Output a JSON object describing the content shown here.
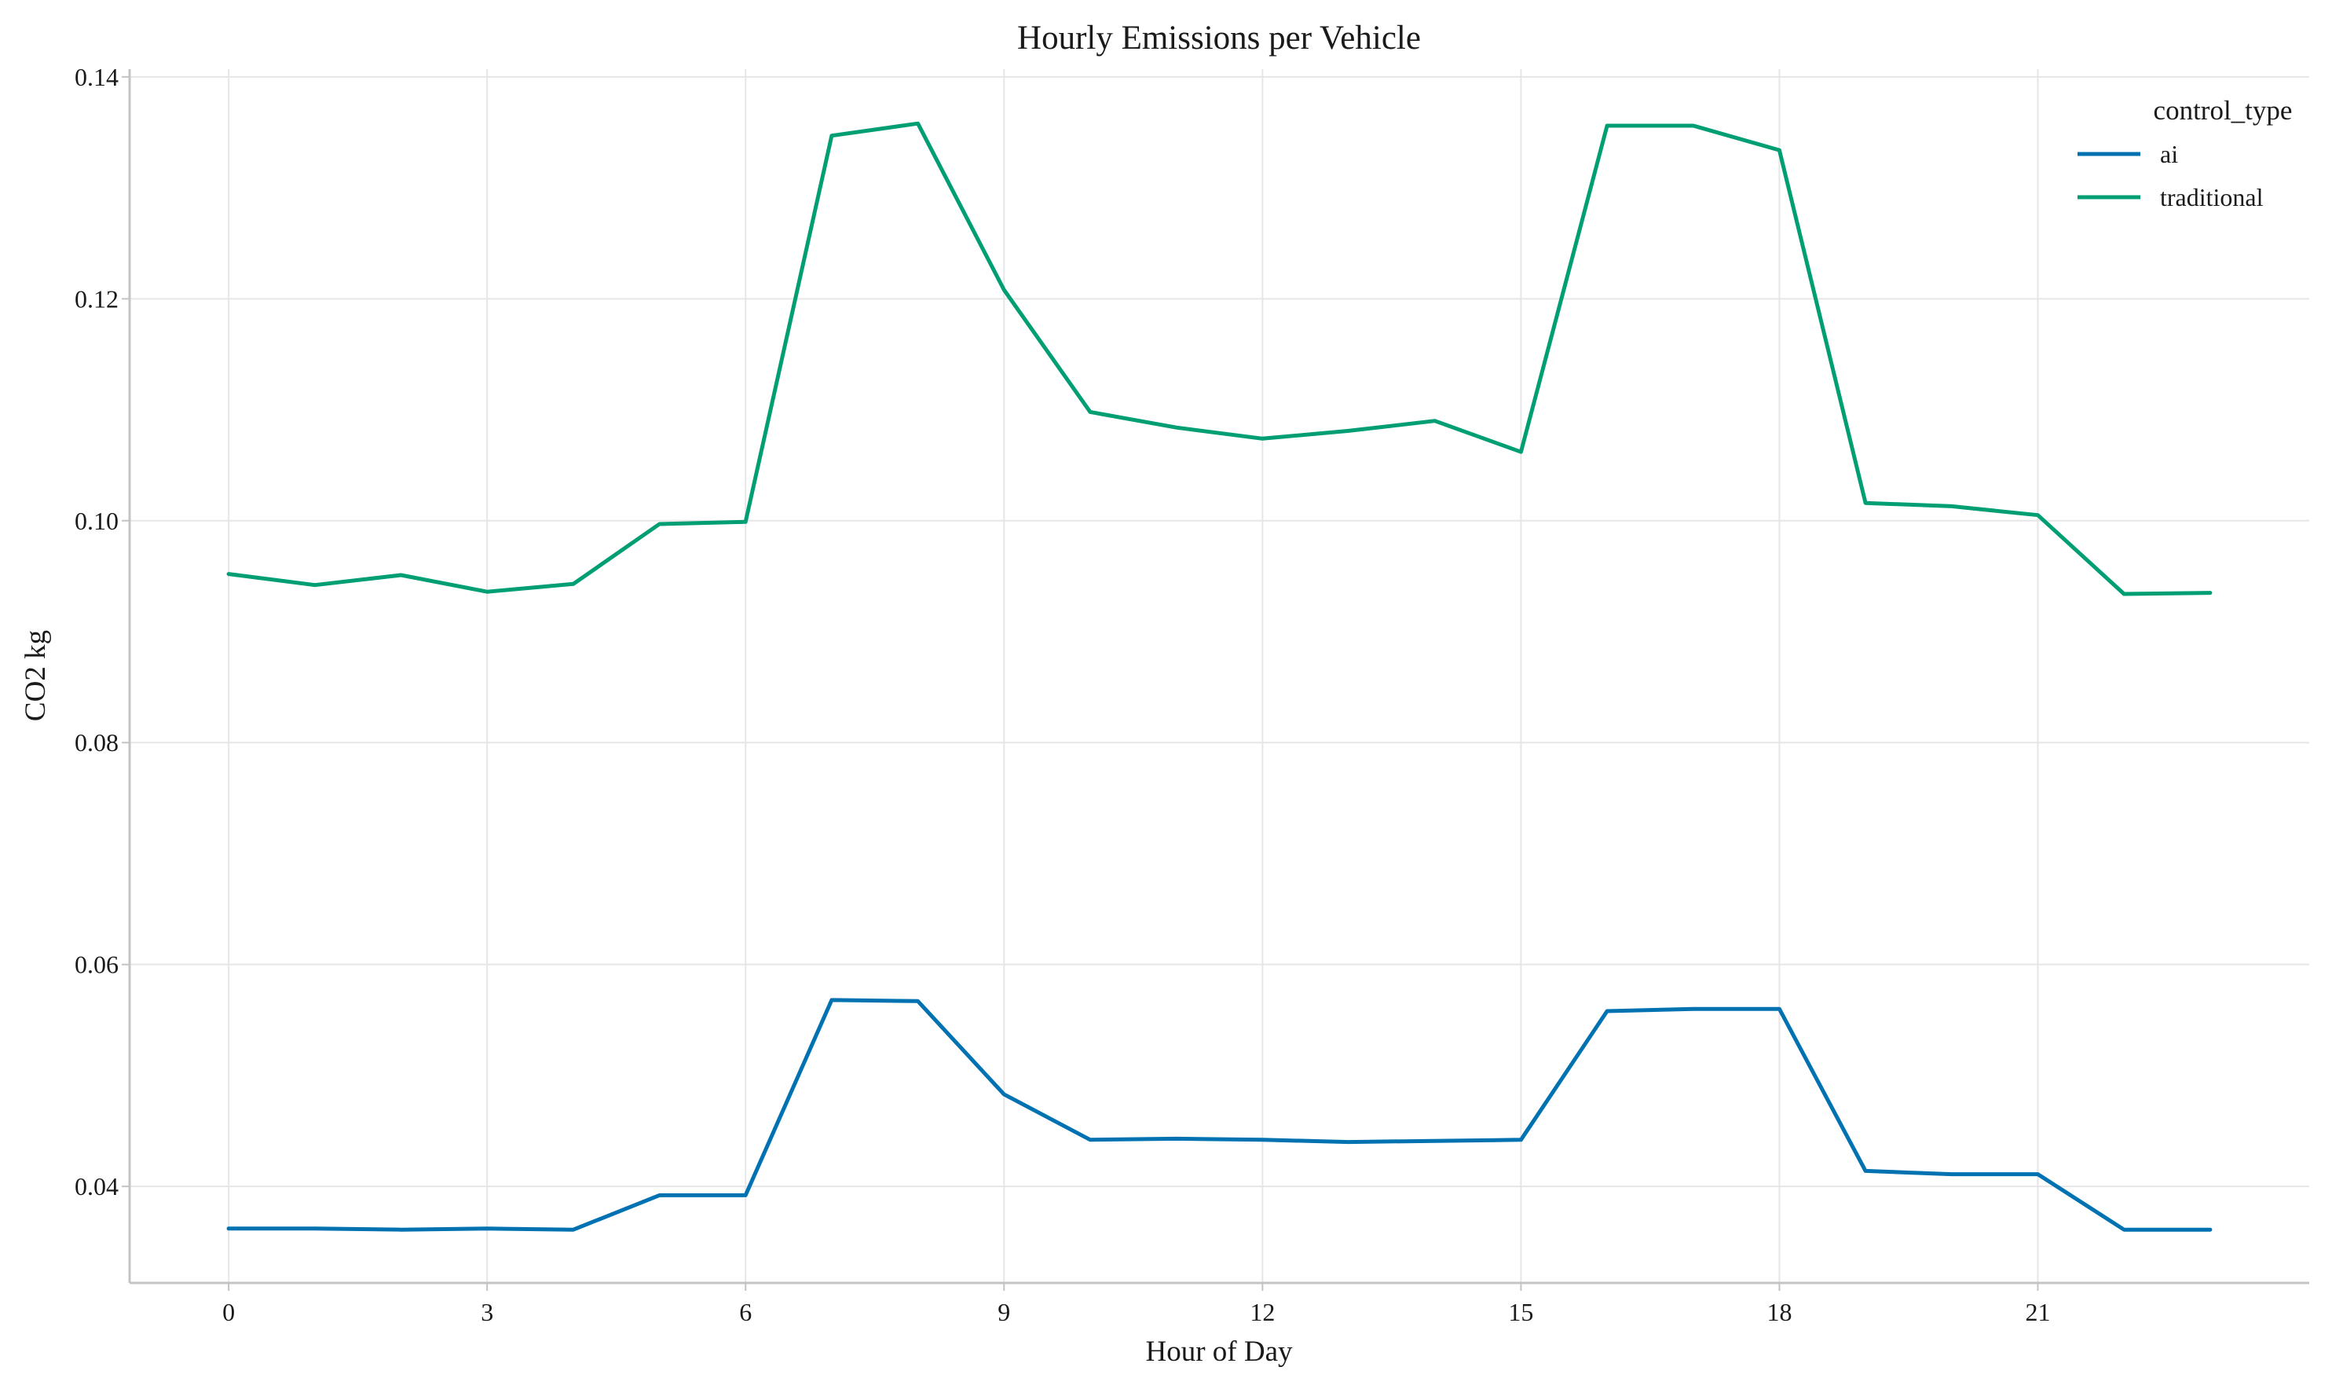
{
  "chart_data": {
    "type": "line",
    "title": "Hourly Emissions per Vehicle",
    "xlabel": "Hour of Day",
    "ylabel": "CO2 kg",
    "x": [
      0,
      1,
      2,
      3,
      4,
      5,
      6,
      7,
      8,
      9,
      10,
      11,
      12,
      13,
      14,
      15,
      16,
      17,
      18,
      19,
      20,
      21,
      22,
      23
    ],
    "xticks": [
      0,
      3,
      6,
      9,
      12,
      15,
      18,
      21
    ],
    "xtick_labels": [
      "0",
      "3",
      "6",
      "9",
      "12",
      "15",
      "18",
      "21"
    ],
    "xlim": [
      -1.15,
      24.15
    ],
    "yticks": [
      0.04,
      0.06,
      0.08,
      0.1,
      0.12,
      0.14
    ],
    "ytick_labels": [
      "0.04",
      "0.06",
      "0.08",
      "0.10",
      "0.12",
      "0.14"
    ],
    "ylim": [
      0.0313,
      0.1407
    ],
    "grid": true,
    "legend": {
      "title": "control_type",
      "position": "top-right"
    },
    "series": [
      {
        "name": "ai",
        "color": "#0072b2",
        "values": [
          0.0362,
          0.0362,
          0.0361,
          0.0362,
          0.0361,
          0.0392,
          0.0392,
          0.0568,
          0.0567,
          0.0483,
          0.0442,
          0.0443,
          0.0442,
          0.044,
          0.0441,
          0.0442,
          0.0558,
          0.056,
          0.056,
          0.0414,
          0.0411,
          0.0411,
          0.0361,
          0.0361
        ]
      },
      {
        "name": "traditional",
        "color": "#009e73",
        "values": [
          0.0952,
          0.0942,
          0.0951,
          0.0936,
          0.0943,
          0.0997,
          0.0999,
          0.1347,
          0.1358,
          0.1208,
          0.1098,
          0.1084,
          0.1074,
          0.1081,
          0.109,
          0.1062,
          0.1356,
          0.1356,
          0.1334,
          0.1016,
          0.1013,
          0.1005,
          0.0934,
          0.0935
        ]
      }
    ]
  }
}
